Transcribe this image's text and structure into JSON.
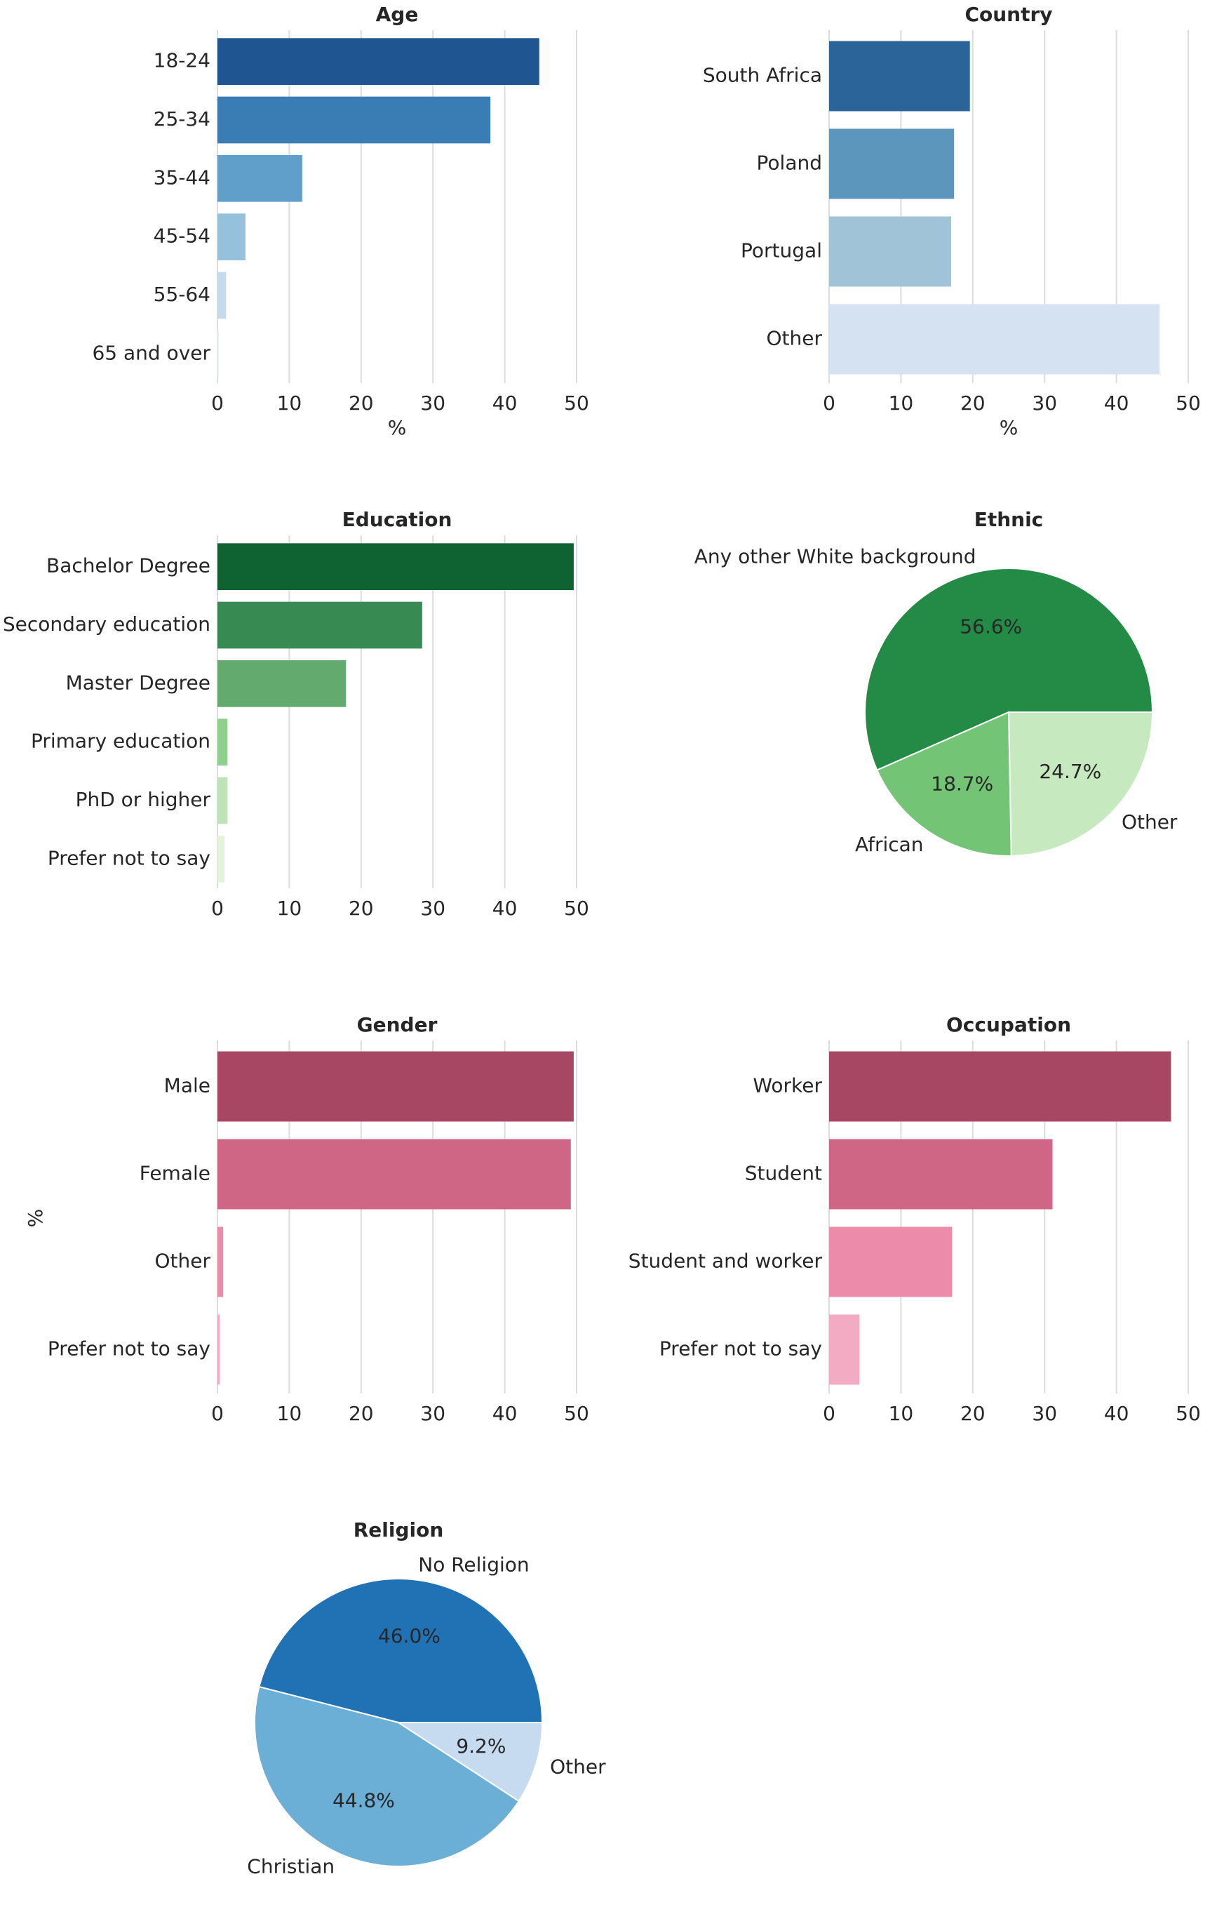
{
  "chart_data": [
    {
      "id": "age",
      "type": "bar",
      "orientation": "horizontal",
      "title": "Age",
      "categories": [
        "18-24",
        "25-34",
        "35-44",
        "45-54",
        "55-64",
        "65 and over"
      ],
      "values": [
        44.8,
        38.0,
        11.8,
        3.9,
        1.2,
        0.2
      ],
      "colors": [
        "#1f5590",
        "#3a7db5",
        "#609fc9",
        "#95c1dc",
        "#c4dbee",
        "#eaf2fa"
      ],
      "xlabel": "%",
      "ylabel": "",
      "xlim": [
        0,
        50
      ],
      "xticks": [
        "0",
        "10",
        "20",
        "30",
        "40",
        "50"
      ]
    },
    {
      "id": "country",
      "type": "bar",
      "orientation": "horizontal",
      "title": "Country",
      "categories": [
        "South Africa",
        "Poland",
        "Portugal",
        "Other"
      ],
      "values": [
        19.6,
        17.4,
        17.0,
        46.0
      ],
      "colors": [
        "#2a6499",
        "#5d96bd",
        "#a0c3d8",
        "#d4e2f1"
      ],
      "xlabel": "%",
      "ylabel": "",
      "xlim": [
        0,
        50
      ],
      "xticks": [
        "0",
        "10",
        "20",
        "30",
        "40",
        "50"
      ]
    },
    {
      "id": "education",
      "type": "bar",
      "orientation": "horizontal",
      "title": "Education",
      "categories": [
        "Bachelor Degree",
        "Secondary education",
        "Master Degree",
        "Primary education",
        "PhD or higher",
        "Prefer not to say"
      ],
      "values": [
        49.6,
        28.5,
        17.9,
        1.4,
        1.4,
        1.0
      ],
      "colors": [
        "#0f6333",
        "#388a53",
        "#62aa6d",
        "#8ecf8c",
        "#bde3b6",
        "#e3f3de"
      ],
      "xlabel": "",
      "ylabel": "",
      "xlim": [
        0,
        50
      ],
      "xticks": [
        "0",
        "10",
        "20",
        "30",
        "40",
        "50"
      ]
    },
    {
      "id": "ethnic",
      "type": "pie",
      "title": "Ethnic",
      "labels": [
        "Any other White background",
        "African",
        "Other"
      ],
      "values": [
        56.6,
        18.7,
        24.7
      ],
      "pct_labels": [
        "56.6%",
        "18.7%",
        "24.7%"
      ],
      "colors": [
        "#238b45",
        "#74c476",
        "#c7e9c0"
      ]
    },
    {
      "id": "gender",
      "type": "bar",
      "orientation": "horizontal",
      "title": "Gender",
      "categories": [
        "Male",
        "Female",
        "Other",
        "Prefer not to say"
      ],
      "values": [
        49.6,
        49.2,
        0.8,
        0.3
      ],
      "colors": [
        "#a84764",
        "#d06685",
        "#ec8baa",
        "#f3aac3"
      ],
      "xlabel": "",
      "ylabel": "%",
      "xlim": [
        0,
        50
      ],
      "xticks": [
        "0",
        "10",
        "20",
        "30",
        "40",
        "50"
      ]
    },
    {
      "id": "occupation",
      "type": "bar",
      "orientation": "horizontal",
      "title": "Occupation",
      "categories": [
        "Worker",
        "Student",
        "Student and worker",
        "Prefer not to say"
      ],
      "values": [
        47.6,
        31.1,
        17.1,
        4.2
      ],
      "colors": [
        "#a84764",
        "#d06685",
        "#ec8baa",
        "#f3aac3"
      ],
      "xlabel": "",
      "ylabel": "",
      "xlim": [
        0,
        50
      ],
      "xticks": [
        "0",
        "10",
        "20",
        "30",
        "40",
        "50"
      ]
    },
    {
      "id": "religion",
      "type": "pie",
      "title": "Religion",
      "labels": [
        "No Religion",
        "Christian",
        "Other"
      ],
      "values": [
        46.0,
        44.8,
        9.2
      ],
      "pct_labels": [
        "46.0%",
        "44.8%",
        "9.2%"
      ],
      "colors": [
        "#2171b5",
        "#6baed6",
        "#c6dbef"
      ]
    }
  ]
}
